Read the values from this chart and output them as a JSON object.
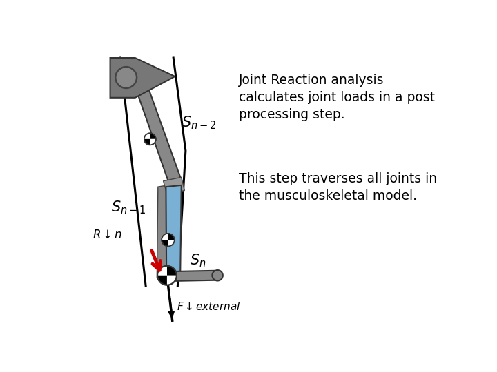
{
  "bg_color": "#ffffff",
  "text1": "Joint Reaction analysis\ncalculates joint loads in a post\nprocessing step.",
  "text2": "This step traverses all joints in\nthe musculoskeletal model.",
  "text_fontsize": 13.5,
  "label_Sn2": "$S_{n-2}$",
  "label_Sn1": "$S_{n-1}$",
  "label_Sn": "$S_n$",
  "label_R": "$R\\downarrow n$",
  "label_F": "$F\\downarrow external$",
  "gray_dark": "#666666",
  "gray_med": "#888888",
  "gray_light": "#aaaaaa",
  "blue_color": "#7ab0d4",
  "red_color": "#cc0000"
}
